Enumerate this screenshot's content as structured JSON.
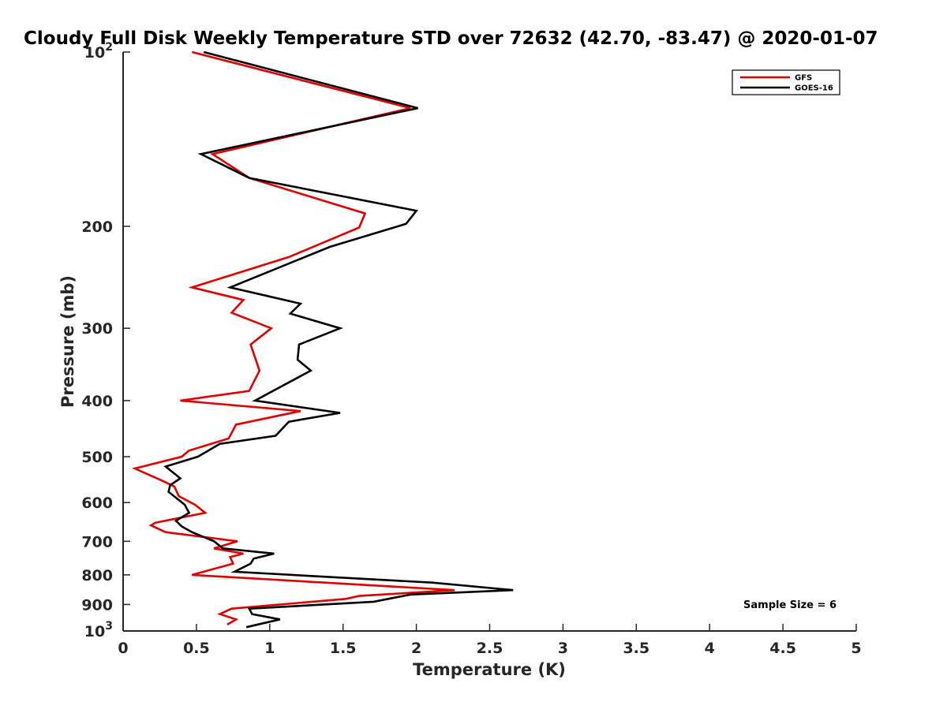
{
  "chart_data": {
    "type": "line",
    "title": "Cloudy Full Disk Weekly Temperature STD over 72632 (42.70, -83.47) @ 2020-01-07",
    "xlabel": "Temperature (K)",
    "ylabel": "Pressure (mb)",
    "xlim": [
      0,
      5
    ],
    "ylim": [
      100,
      1000
    ],
    "yscale": "log",
    "y_reversed": true,
    "x_ticks": [
      "0",
      "0.5",
      "1",
      "1.5",
      "2",
      "2.5",
      "3",
      "3.5",
      "4",
      "4.5",
      "5"
    ],
    "y_ticks": [
      {
        "value": 100,
        "base": "10",
        "exp": "2"
      },
      {
        "value": 200,
        "label": "200"
      },
      {
        "value": 300,
        "label": "300"
      },
      {
        "value": 400,
        "label": "400"
      },
      {
        "value": 500,
        "label": "500"
      },
      {
        "value": 600,
        "label": "600"
      },
      {
        "value": 700,
        "label": "700"
      },
      {
        "value": 800,
        "label": "800"
      },
      {
        "value": 900,
        "label": "900"
      },
      {
        "value": 1000,
        "base": "10",
        "exp": "3"
      }
    ],
    "legend_position": "top-right",
    "annotation": "Sample Size = 6",
    "grid": false,
    "series": [
      {
        "name": "GFS",
        "color": "#e00000",
        "points": [
          [
            0.47,
            100
          ],
          [
            1.96,
            125
          ],
          [
            0.61,
            150
          ],
          [
            0.86,
            165
          ],
          [
            1.65,
            190
          ],
          [
            1.61,
            201
          ],
          [
            1.13,
            226
          ],
          [
            0.47,
            255
          ],
          [
            0.82,
            268
          ],
          [
            0.74,
            282
          ],
          [
            1.01,
            300
          ],
          [
            0.87,
            320
          ],
          [
            0.93,
            355
          ],
          [
            0.86,
            385
          ],
          [
            0.39,
            400
          ],
          [
            1.21,
            417
          ],
          [
            0.77,
            440
          ],
          [
            0.72,
            465
          ],
          [
            0.45,
            488
          ],
          [
            0.4,
            500
          ],
          [
            0.08,
            524
          ],
          [
            0.28,
            552
          ],
          [
            0.35,
            563
          ],
          [
            0.38,
            585
          ],
          [
            0.49,
            605
          ],
          [
            0.56,
            625
          ],
          [
            0.22,
            650
          ],
          [
            0.19,
            657
          ],
          [
            0.29,
            675
          ],
          [
            0.78,
            700
          ],
          [
            0.62,
            720
          ],
          [
            0.82,
            735
          ],
          [
            0.73,
            745
          ],
          [
            0.75,
            765
          ],
          [
            0.47,
            800
          ],
          [
            2.26,
            850
          ],
          [
            1.61,
            870
          ],
          [
            1.52,
            880
          ],
          [
            0.74,
            915
          ],
          [
            0.66,
            935
          ],
          [
            0.77,
            955
          ],
          [
            0.71,
            975
          ]
        ]
      },
      {
        "name": "GOES-16",
        "color": "#000000",
        "points": [
          [
            0.55,
            100
          ],
          [
            2.01,
            125
          ],
          [
            0.53,
            150
          ],
          [
            0.86,
            165
          ],
          [
            2.0,
            188
          ],
          [
            1.93,
            198
          ],
          [
            1.41,
            217
          ],
          [
            0.73,
            255
          ],
          [
            1.21,
            272
          ],
          [
            1.14,
            283
          ],
          [
            1.48,
            300
          ],
          [
            1.2,
            320
          ],
          [
            1.19,
            340
          ],
          [
            1.28,
            355
          ],
          [
            0.9,
            400
          ],
          [
            1.48,
            420
          ],
          [
            1.13,
            435
          ],
          [
            1.04,
            460
          ],
          [
            0.66,
            475
          ],
          [
            0.51,
            500
          ],
          [
            0.29,
            520
          ],
          [
            0.39,
            545
          ],
          [
            0.32,
            560
          ],
          [
            0.31,
            575
          ],
          [
            0.42,
            605
          ],
          [
            0.45,
            625
          ],
          [
            0.36,
            645
          ],
          [
            0.4,
            660
          ],
          [
            0.47,
            675
          ],
          [
            0.62,
            700
          ],
          [
            0.68,
            720
          ],
          [
            1.03,
            735
          ],
          [
            0.89,
            750
          ],
          [
            0.87,
            765
          ],
          [
            0.76,
            790
          ],
          [
            2.11,
            825
          ],
          [
            2.66,
            850
          ],
          [
            1.96,
            865
          ],
          [
            1.71,
            890
          ],
          [
            0.86,
            915
          ],
          [
            0.88,
            935
          ],
          [
            1.07,
            955
          ],
          [
            0.84,
            985
          ]
        ]
      }
    ]
  }
}
